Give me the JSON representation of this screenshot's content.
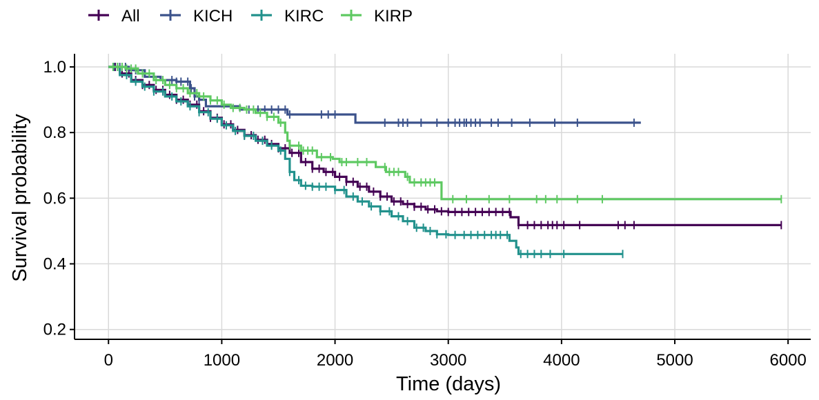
{
  "chart_data": {
    "type": "line",
    "subtype": "kaplan-meier survival curves",
    "xlabel": "Time (days)",
    "ylabel": "Survival probability",
    "xlim": [
      -300,
      6200
    ],
    "ylim": [
      0.17,
      1.04
    ],
    "x_ticks": [
      0,
      1000,
      2000,
      3000,
      4000,
      5000,
      6000
    ],
    "x_tick_labels": [
      "0",
      "1000",
      "2000",
      "3000",
      "4000",
      "5000",
      "6000"
    ],
    "y_ticks": [
      0.2,
      0.4,
      0.6,
      0.8,
      1.0
    ],
    "y_tick_labels": [
      "0.2",
      "0.4",
      "0.6",
      "0.8",
      "1.0"
    ],
    "grid": true,
    "legend_position": "top-left",
    "series": [
      {
        "name": "All",
        "color": "#440154",
        "steps": [
          [
            0,
            1.0
          ],
          [
            100,
            0.98
          ],
          [
            200,
            0.96
          ],
          [
            300,
            0.945
          ],
          [
            400,
            0.93
          ],
          [
            500,
            0.915
          ],
          [
            600,
            0.9
          ],
          [
            700,
            0.885
          ],
          [
            800,
            0.865
          ],
          [
            900,
            0.845
          ],
          [
            1000,
            0.825
          ],
          [
            1100,
            0.808
          ],
          [
            1200,
            0.792
          ],
          [
            1300,
            0.778
          ],
          [
            1400,
            0.765
          ],
          [
            1500,
            0.752
          ],
          [
            1600,
            0.738
          ],
          [
            1700,
            0.71
          ],
          [
            1800,
            0.69
          ],
          [
            1900,
            0.68
          ],
          [
            2000,
            0.665
          ],
          [
            2100,
            0.65
          ],
          [
            2200,
            0.635
          ],
          [
            2300,
            0.62
          ],
          [
            2400,
            0.605
          ],
          [
            2500,
            0.59
          ],
          [
            2600,
            0.582
          ],
          [
            2700,
            0.574
          ],
          [
            2800,
            0.566
          ],
          [
            2900,
            0.56
          ],
          [
            3000,
            0.558
          ],
          [
            3550,
            0.542
          ],
          [
            3620,
            0.518
          ],
          [
            5940,
            0.518
          ]
        ],
        "censor_times": [
          60,
          120,
          180,
          240,
          300,
          360,
          420,
          480,
          540,
          600,
          660,
          720,
          780,
          840,
          900,
          960,
          1020,
          1080,
          1140,
          1200,
          1260,
          1320,
          1380,
          1440,
          1500,
          1560,
          1620,
          1680,
          1740,
          1800,
          1860,
          1920,
          1980,
          2040,
          2100,
          2160,
          2220,
          2280,
          2340,
          2400,
          2460,
          2520,
          2580,
          2640,
          2700,
          2760,
          2820,
          2880,
          2940,
          3000,
          3060,
          3120,
          3180,
          3240,
          3300,
          3360,
          3420,
          3480,
          3540,
          3620,
          3700,
          3760,
          3820,
          3880,
          3920,
          3960,
          4020,
          4160,
          4500,
          4560,
          4640,
          5940
        ]
      },
      {
        "name": "KICH",
        "color": "#3b528b",
        "steps": [
          [
            0,
            1.0
          ],
          [
            180,
            0.99
          ],
          [
            320,
            0.97
          ],
          [
            460,
            0.96
          ],
          [
            600,
            0.955
          ],
          [
            720,
            0.935
          ],
          [
            760,
            0.91
          ],
          [
            800,
            0.9
          ],
          [
            860,
            0.88
          ],
          [
            1000,
            0.88
          ],
          [
            1160,
            0.87
          ],
          [
            1320,
            0.87
          ],
          [
            1580,
            0.855
          ],
          [
            2180,
            0.83
          ],
          [
            4700,
            0.83
          ]
        ],
        "censor_times": [
          50,
          100,
          150,
          240,
          560,
          600,
          640,
          700,
          730,
          760,
          800,
          1240,
          1320,
          1380,
          1440,
          1500,
          1560,
          1600,
          1880,
          1940,
          2000,
          2440,
          2560,
          2600,
          2640,
          2760,
          2900,
          3000,
          3060,
          3100,
          3140,
          3160,
          3200,
          3240,
          3280,
          3380,
          3440,
          3560,
          3720,
          3940,
          4140,
          4640
        ]
      },
      {
        "name": "KIRC",
        "color": "#21918c",
        "steps": [
          [
            0,
            1.0
          ],
          [
            100,
            0.975
          ],
          [
            200,
            0.955
          ],
          [
            300,
            0.94
          ],
          [
            400,
            0.925
          ],
          [
            500,
            0.91
          ],
          [
            600,
            0.895
          ],
          [
            700,
            0.88
          ],
          [
            800,
            0.862
          ],
          [
            900,
            0.842
          ],
          [
            1000,
            0.822
          ],
          [
            1100,
            0.805
          ],
          [
            1200,
            0.79
          ],
          [
            1300,
            0.775
          ],
          [
            1400,
            0.76
          ],
          [
            1500,
            0.745
          ],
          [
            1560,
            0.72
          ],
          [
            1600,
            0.68
          ],
          [
            1640,
            0.655
          ],
          [
            1700,
            0.638
          ],
          [
            1800,
            0.635
          ],
          [
            2000,
            0.625
          ],
          [
            2100,
            0.605
          ],
          [
            2200,
            0.59
          ],
          [
            2300,
            0.575
          ],
          [
            2400,
            0.56
          ],
          [
            2500,
            0.545
          ],
          [
            2600,
            0.53
          ],
          [
            2700,
            0.51
          ],
          [
            2800,
            0.5
          ],
          [
            2900,
            0.49
          ],
          [
            3000,
            0.488
          ],
          [
            3540,
            0.47
          ],
          [
            3600,
            0.45
          ],
          [
            3620,
            0.43
          ],
          [
            4540,
            0.43
          ]
        ],
        "censor_times": [
          80,
          160,
          240,
          320,
          400,
          480,
          560,
          640,
          720,
          800,
          880,
          960,
          1040,
          1120,
          1200,
          1280,
          1360,
          1440,
          1520,
          1600,
          1680,
          1740,
          1800,
          1860,
          1920,
          2000,
          2080,
          2160,
          2240,
          2320,
          2400,
          2480,
          2560,
          2640,
          2720,
          2780,
          2840,
          2900,
          2980,
          3060,
          3140,
          3200,
          3260,
          3320,
          3380,
          3420,
          3460,
          3520,
          3640,
          3700,
          3760,
          3820,
          3900,
          4020,
          4540
        ]
      },
      {
        "name": "KIRP",
        "color": "#5ec962",
        "steps": [
          [
            0,
            1.0
          ],
          [
            150,
            0.995
          ],
          [
            260,
            0.98
          ],
          [
            400,
            0.96
          ],
          [
            500,
            0.945
          ],
          [
            600,
            0.935
          ],
          [
            700,
            0.92
          ],
          [
            800,
            0.91
          ],
          [
            900,
            0.898
          ],
          [
            1000,
            0.885
          ],
          [
            1080,
            0.875
          ],
          [
            1200,
            0.87
          ],
          [
            1300,
            0.86
          ],
          [
            1400,
            0.848
          ],
          [
            1500,
            0.83
          ],
          [
            1560,
            0.8
          ],
          [
            1580,
            0.775
          ],
          [
            1600,
            0.76
          ],
          [
            1700,
            0.745
          ],
          [
            1840,
            0.725
          ],
          [
            1980,
            0.72
          ],
          [
            2040,
            0.71
          ],
          [
            2360,
            0.695
          ],
          [
            2450,
            0.68
          ],
          [
            2620,
            0.665
          ],
          [
            2660,
            0.648
          ],
          [
            2900,
            0.648
          ],
          [
            2940,
            0.597
          ],
          [
            5940,
            0.597
          ]
        ],
        "censor_times": [
          40,
          80,
          120,
          160,
          200,
          240,
          300,
          360,
          420,
          480,
          540,
          600,
          660,
          720,
          780,
          840,
          900,
          960,
          1020,
          1100,
          1160,
          1220,
          1280,
          1340,
          1400,
          1460,
          1520,
          1600,
          1680,
          1720,
          1760,
          1800,
          1880,
          1960,
          2060,
          2100,
          2200,
          2280,
          2440,
          2480,
          2520,
          2560,
          2640,
          2700,
          2760,
          2800,
          2840,
          2880,
          3040,
          3160,
          3360,
          3540,
          3780,
          3860,
          3960,
          4140,
          4360,
          5940
        ]
      }
    ]
  }
}
